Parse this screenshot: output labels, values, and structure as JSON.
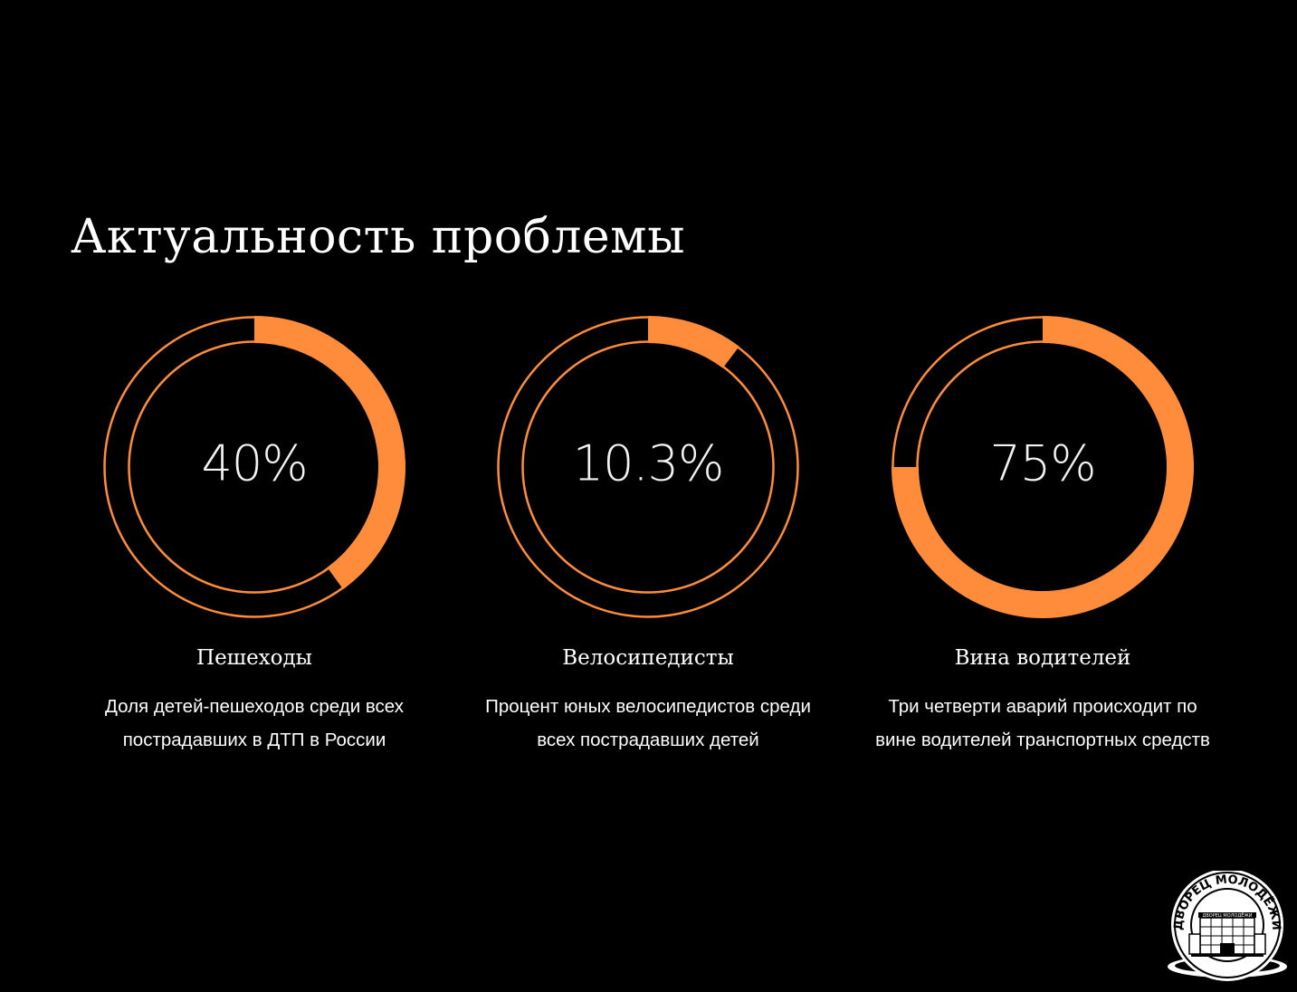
{
  "slide": {
    "title": "Актуальность проблемы"
  },
  "colors": {
    "background": "#000000",
    "accent": "#ff8c3a",
    "text": "#ffffff"
  },
  "chart_data": [
    {
      "type": "pie",
      "value_percent": 40,
      "center_label": "40%",
      "caption": "Пешеходы",
      "description_lines": [
        "Доля детей-пешеходов среди всех",
        "пострадавших в ДТП в России"
      ]
    },
    {
      "type": "pie",
      "value_percent": 10.3,
      "center_label": "10.3%",
      "caption": "Велосипедисты",
      "description_lines": [
        "Процент юных велосипедистов среди",
        "всех пострадавших детей"
      ]
    },
    {
      "type": "pie",
      "value_percent": 75,
      "center_label": "75%",
      "caption": "Вина водителей",
      "description_lines": [
        "Три четверти аварий происходит по",
        "вине водителей транспортных средств"
      ]
    }
  ],
  "logo": {
    "icon": "palace-of-youth-seal-icon",
    "ring_text": "ДВОРЕЦ МОЛОДЁЖИ",
    "building_sign": "ДВОРЕЦ МОЛОДЁЖИ"
  }
}
